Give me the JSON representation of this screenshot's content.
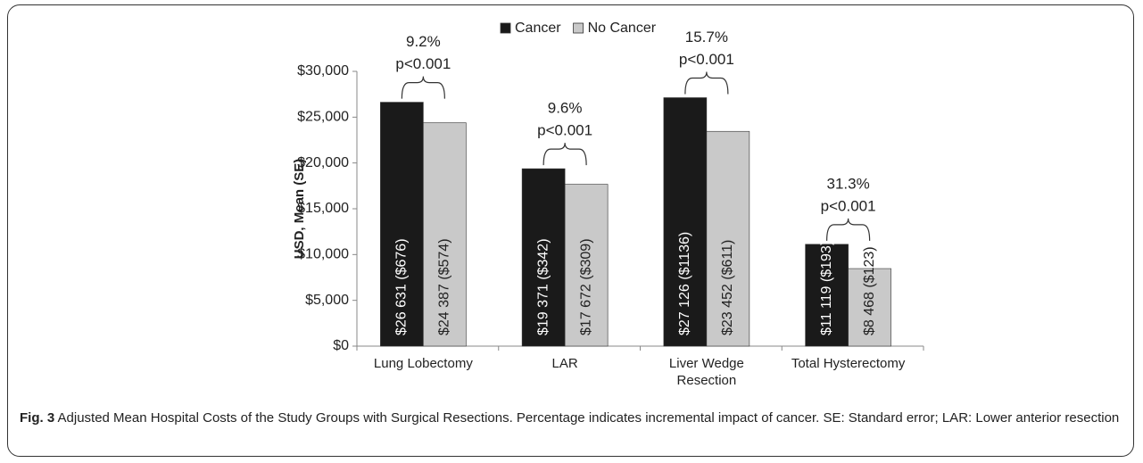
{
  "chart_data": {
    "type": "bar",
    "y_axis_label": "USD, Mean (SE)",
    "categories": [
      "Lung Lobectomy",
      "LAR",
      "Liver Wedge Resection",
      "Total Hysterectomy"
    ],
    "series": [
      {
        "name": "Cancer",
        "color": "#1a1a1a",
        "values": [
          26631,
          19371,
          27126,
          11119
        ],
        "value_labels": [
          "$26 631 ($676)",
          "$19 371 ($342)",
          "$27 126 ($1136)",
          "$11 119 ($193)"
        ]
      },
      {
        "name": "No Cancer",
        "color": "#c9c9c9",
        "values": [
          24387,
          17672,
          23452,
          8468
        ],
        "value_labels": [
          "$24 387 ($574)",
          "$17 672 ($309)",
          "$23 452 ($611)",
          "$8 468 ($123)"
        ]
      }
    ],
    "annotations": [
      {
        "percent": "9.2%",
        "p": "p<0.001"
      },
      {
        "percent": "9.6%",
        "p": "p<0.001"
      },
      {
        "percent": "15.7%",
        "p": "p<0.001"
      },
      {
        "percent": "31.3%",
        "p": "p<0.001"
      }
    ],
    "ylim": [
      0,
      30000
    ],
    "yticks": [
      {
        "value": 0,
        "label": "$0"
      },
      {
        "value": 5000,
        "label": "$5,000"
      },
      {
        "value": 10000,
        "label": "$10,000"
      },
      {
        "value": 15000,
        "label": "$15,000"
      },
      {
        "value": 20000,
        "label": "$20,000"
      },
      {
        "value": 25000,
        "label": "$25,000"
      },
      {
        "value": 30000,
        "label": "$30,000"
      }
    ],
    "grid": false,
    "legend": "top"
  },
  "caption": {
    "label": "Fig. 3",
    "text": "Adjusted Mean Hospital Costs of the Study Groups with Surgical Resections. Percentage indicates incremental impact of cancer. SE: Standard error; LAR: Lower anterior resection"
  }
}
